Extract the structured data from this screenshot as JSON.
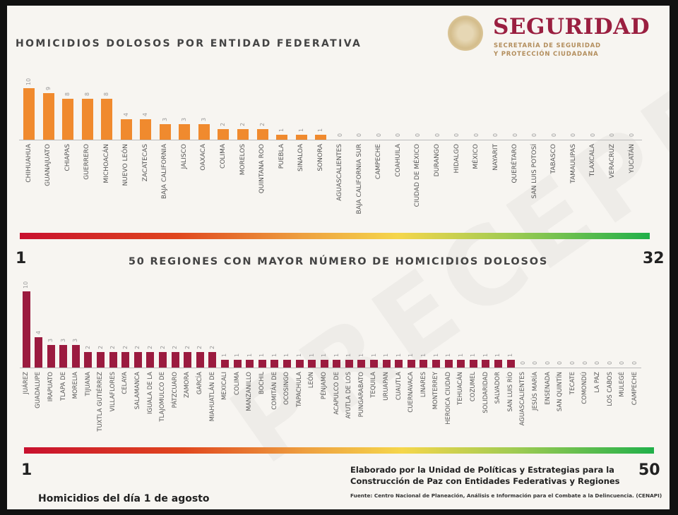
{
  "header": {
    "title_states": "HOMICIDIOS DOLOSOS POR ENTIDAD FEDERATIVA",
    "title_regions": "50 REGIONES CON MAYOR NÚMERO DE HOMICIDIOS DOLOSOS",
    "logo": {
      "brand": "SEGURIDAD",
      "sub1": "SECRETARÍA DE SEGURIDAD",
      "sub2": "Y PROTECCIÓN CIUDADANA"
    }
  },
  "watermark": "PRECEPFO",
  "colors": {
    "states_bar": "#f08a2e",
    "regions_bar": "#9b1b3f",
    "brand": "#9a1f40"
  },
  "scale_states": {
    "start": "1",
    "end": "32"
  },
  "scale_regions": {
    "start": "1",
    "end": "50"
  },
  "footer": {
    "date": "Homicidios del día 1 de agosto",
    "credit_line1": "Elaborado por la Unidad de Políticas y Estrategias para la",
    "credit_line2": "Construcción de Paz con Entidades Federativas y Regiones",
    "source": "Fuente: Centro Nacional de Planeación, Análisis e Información para el Combate a la Delincuencia. (CENAPI)"
  },
  "chart_data": [
    {
      "type": "bar",
      "title": "HOMICIDIOS DOLOSOS POR ENTIDAD FEDERATIVA",
      "xlabel": "",
      "ylabel": "",
      "ylim": [
        0,
        10
      ],
      "categories": [
        "CHIHUAHUA",
        "GUANAJUATO",
        "CHIAPAS",
        "GUERRERO",
        "MICHOACÁN",
        "NUEVO LEÓN",
        "ZACATECAS",
        "BAJA CALIFORNIA",
        "JALISCO",
        "OAXACA",
        "COLIMA",
        "MORELOS",
        "QUINTANA ROO",
        "PUEBLA",
        "SINALOA",
        "SONORA",
        "AGUASCALIENTES",
        "BAJA CALIFORNIA SUR",
        "CAMPECHE",
        "COAHUILA",
        "CIUDAD DE MÉXICO",
        "DURANGO",
        "HIDALGO",
        "MÉXICO",
        "NAYARIT",
        "QUERÉTARO",
        "SAN LUIS POTOSÍ",
        "TABASCO",
        "TAMAULIPAS",
        "TLAXCALA",
        "VERACRUZ",
        "YUCATÁN"
      ],
      "values": [
        10,
        9,
        8,
        8,
        8,
        4,
        4,
        3,
        3,
        3,
        2,
        2,
        2,
        1,
        1,
        1,
        0,
        0,
        0,
        0,
        0,
        0,
        0,
        0,
        0,
        0,
        0,
        0,
        0,
        0,
        0,
        0
      ]
    },
    {
      "type": "bar",
      "title": "50 REGIONES CON MAYOR NÚMERO DE HOMICIDIOS DOLOSOS",
      "xlabel": "",
      "ylabel": "",
      "ylim": [
        0,
        10
      ],
      "categories": [
        "JUÁREZ",
        "GUADALUPE",
        "IRAPUATO",
        "TLAPA DE",
        "MORELIA",
        "TIJUANA",
        "TUXTLA GUTIÉRREZ",
        "VILLAFLORES",
        "CELAYA",
        "SALAMANCA",
        "IGUALA DE LA",
        "TLAJOMULCO DE",
        "PÁTZCUARO",
        "ZAMORA",
        "GARCÍA",
        "MIAHUATLÁN DE",
        "MEXICALI",
        "COLIMA",
        "MANZANILLO",
        "BOCHIL",
        "COMITÁN DE",
        "OCOSINGO",
        "TAPACHULA",
        "LEÓN",
        "PÉNJAMO",
        "ACAPULCO DE",
        "AYUTLA DE LOS",
        "PUNGARABATO",
        "TEQUILA",
        "URUAPAN",
        "CUAUTLA",
        "CUERNAVACA",
        "LINARES",
        "MONTERREY",
        "HEROICA CIUDAD",
        "TEHUACÁN",
        "COZUMEL",
        "SOLIDARIDAD",
        "SALVADOR",
        "SAN LUIS RÍO",
        "AGUASCALIENTES",
        "JESÚS MARÍA",
        "ENSENADA",
        "SAN QUINTÍN",
        "TECATE",
        "COMONDÚ",
        "LA PAZ",
        "LOS CABOS",
        "MULEGÉ",
        "CAMPECHE"
      ],
      "values": [
        10,
        4,
        3,
        3,
        3,
        2,
        2,
        2,
        2,
        2,
        2,
        2,
        2,
        2,
        2,
        2,
        1,
        1,
        1,
        1,
        1,
        1,
        1,
        1,
        1,
        1,
        1,
        1,
        1,
        1,
        1,
        1,
        1,
        1,
        1,
        1,
        1,
        1,
        1,
        1,
        0,
        0,
        0,
        0,
        0,
        0,
        0,
        0,
        0,
        0
      ]
    }
  ]
}
